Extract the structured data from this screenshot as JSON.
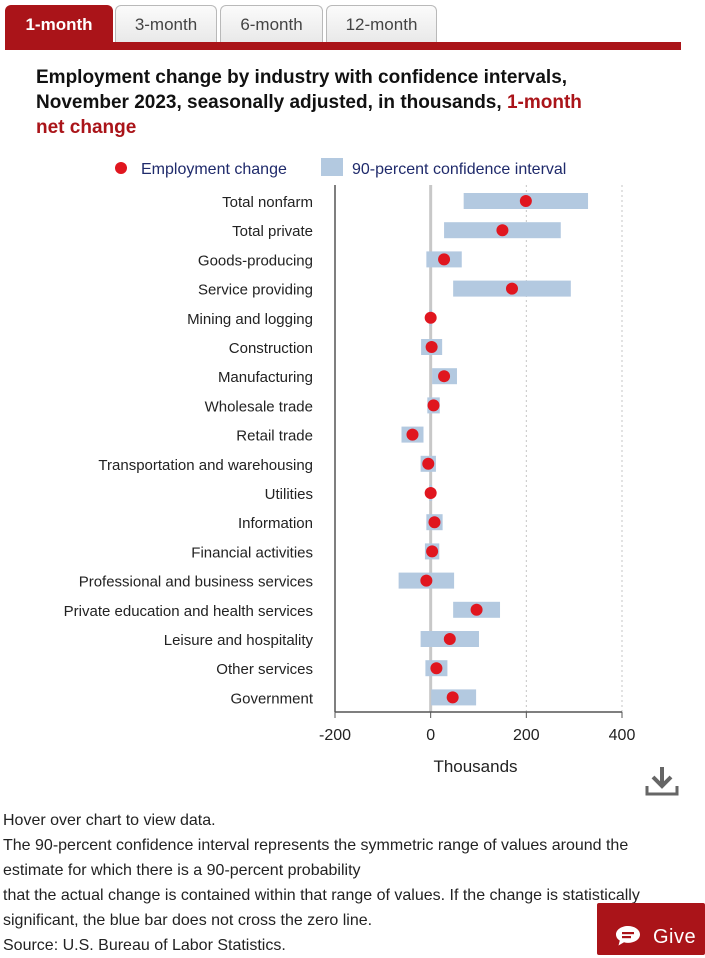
{
  "tabs": [
    {
      "label": "1-month",
      "active": true
    },
    {
      "label": "3-month",
      "active": false
    },
    {
      "label": "6-month",
      "active": false
    },
    {
      "label": "12-month",
      "active": false
    }
  ],
  "title": {
    "main": "Employment change by industry with confidence intervals, November 2023, seasonally adjusted, in thousands,",
    "highlight": "1-month net change"
  },
  "legend": {
    "point_label": "Employment change",
    "interval_label": "90-percent confidence interval"
  },
  "colors": {
    "accent": "#aa1419",
    "point": "#e0161f",
    "interval": "#b3c9e0",
    "legend_text": "#1f2a6b"
  },
  "chart_data": {
    "type": "scatter",
    "orientation": "horizontal",
    "xlabel": "Thousands",
    "xlim": [
      -200,
      400
    ],
    "xticks": [
      -200,
      0,
      200,
      400
    ],
    "x_tick_labels": [
      "-200",
      "0",
      "200",
      "400"
    ],
    "reference_lines": [
      0,
      200,
      400
    ],
    "legend_position": "top",
    "categories": [
      "Total nonfarm",
      "Total private",
      "Goods-producing",
      "Service providing",
      "Mining and logging",
      "Construction",
      "Manufacturing",
      "Wholesale trade",
      "Retail trade",
      "Transportation and warehousing",
      "Utilities",
      "Information",
      "Financial activities",
      "Professional and business services",
      "Private education and health services",
      "Leisure and hospitality",
      "Other services",
      "Government"
    ],
    "series": [
      {
        "name": "Employment change",
        "values": [
          199,
          150,
          28,
          170,
          0,
          2,
          28,
          6,
          -38,
          -5,
          0,
          8,
          3,
          -9,
          96,
          40,
          12,
          46
        ]
      },
      {
        "name": "90-percent confidence interval",
        "low": [
          69,
          28,
          -9,
          47,
          -3,
          -20,
          3,
          -7,
          -61,
          -21,
          -3,
          -9,
          -12,
          -67,
          47,
          -21,
          -11,
          1
        ],
        "high": [
          329,
          272,
          65,
          293,
          3,
          24,
          55,
          19,
          -15,
          11,
          3,
          25,
          18,
          49,
          145,
          101,
          35,
          95
        ]
      }
    ]
  },
  "download": {
    "icon": "download-icon"
  },
  "notes": [
    "Hover over chart to view data.",
    "The 90-percent confidence interval represents the symmetric range of values around the estimate for which there is a 90-percent probability",
    "that the actual change is contained within that range of values. If the change is statistically significant, the blue bar does not cross the zero line.",
    "Source: U.S. Bureau of Labor Statistics."
  ],
  "give_button": {
    "label": "Give",
    "icon": "chat-icon"
  }
}
